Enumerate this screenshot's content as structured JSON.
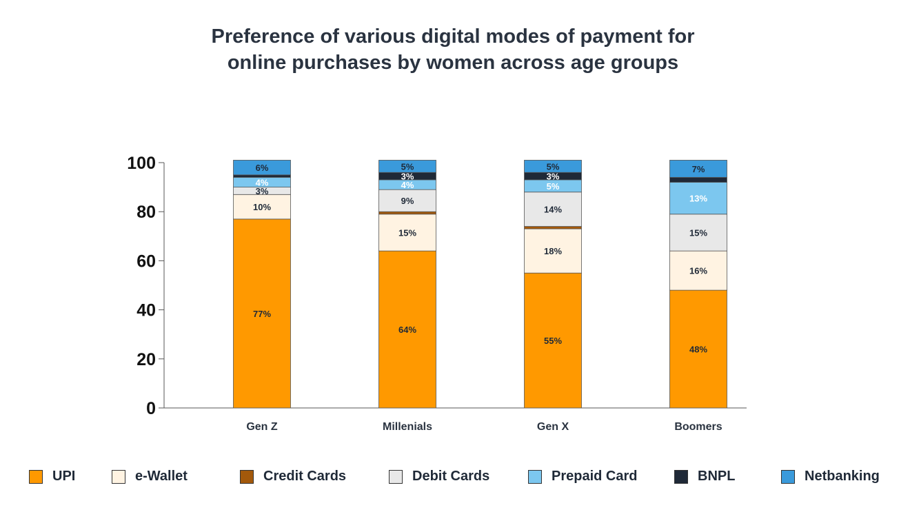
{
  "chart_data": {
    "type": "bar",
    "stacked": true,
    "title_lines": [
      "Preference of various digital modes of payment for",
      "online purchases by women across age groups"
    ],
    "categories": [
      "Gen Z",
      "Millenials",
      "Gen X",
      "Boomers"
    ],
    "ylim": [
      0,
      100
    ],
    "yticks": [
      "0",
      "20",
      "40",
      "60",
      "80",
      "100"
    ],
    "xlabel": "",
    "ylabel": "",
    "grid": false,
    "legend_position": "bottom",
    "series": [
      {
        "name": "UPI",
        "color": "#FF9900",
        "label_color": "#1f2937",
        "values": [
          77,
          64,
          55,
          48
        ],
        "labels": [
          "77%",
          "64%",
          "55%",
          "48%"
        ]
      },
      {
        "name": "e-Wallet",
        "color": "#FFF3E2",
        "label_color": "#1f2937",
        "values": [
          10,
          15,
          18,
          16
        ],
        "labels": [
          "10%",
          "15%",
          "18%",
          "16%"
        ]
      },
      {
        "name": "Credit Cards",
        "color": "#A3590B",
        "label_color": "#ffffff",
        "values": [
          0,
          1,
          1,
          0
        ],
        "labels": [
          "",
          "",
          "",
          ""
        ]
      },
      {
        "name": "Debit Cards",
        "color": "#E8E8E8",
        "label_color": "#1f2937",
        "values": [
          3,
          9,
          14,
          15
        ],
        "labels": [
          "3%",
          "9%",
          "14%",
          "15%"
        ]
      },
      {
        "name": "Prepaid Card",
        "color": "#7CC7EF",
        "label_color": "#ffffff",
        "values": [
          4,
          4,
          5,
          13
        ],
        "labels": [
          "4%",
          "4%",
          "5%",
          "13%"
        ]
      },
      {
        "name": "BNPL",
        "color": "#1F2937",
        "label_color": "#ffffff",
        "values": [
          1,
          3,
          3,
          2
        ],
        "labels": [
          "",
          "3%",
          "3%",
          ""
        ]
      },
      {
        "name": "Netbanking",
        "color": "#3A9ADB",
        "label_color": "#1f2937",
        "values": [
          6,
          5,
          5,
          7
        ],
        "labels": [
          "6%",
          "5%",
          "5%",
          "7%"
        ]
      }
    ]
  }
}
